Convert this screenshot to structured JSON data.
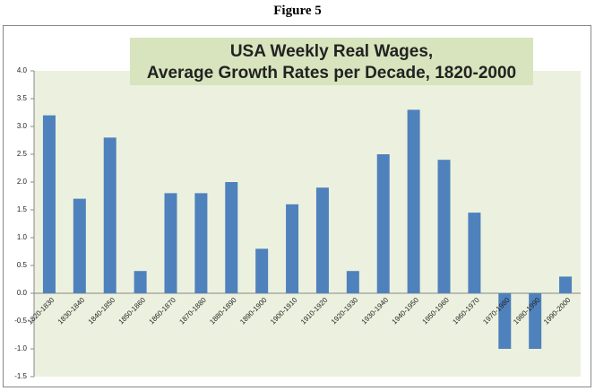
{
  "figure_label": "Figure 5",
  "chart_data": {
    "type": "bar",
    "title": "USA  Weekly Real  Wages,",
    "subtitle": "Average Growth Rates per Decade, 1820-2000",
    "categories": [
      "1820-1830",
      "1830-1840",
      "1840-1850",
      "1850-1860",
      "1860-1870",
      "1870-1880",
      "1880-1890",
      "1890-1900",
      "1900-1910",
      "1910-1920",
      "1920-1930",
      "1930-1940",
      "1940-1950",
      "1950-1960",
      "1960-1970",
      "1970-1980",
      "1980-1990",
      "1990-2000"
    ],
    "values": [
      3.2,
      1.7,
      2.8,
      0.4,
      1.8,
      1.8,
      2.0,
      0.8,
      1.6,
      1.9,
      0.4,
      2.5,
      3.3,
      2.4,
      1.45,
      -1.0,
      -1.0,
      0.3
    ],
    "color": "#4f81bd",
    "ylim": [
      -1.5,
      4.0
    ],
    "yticks": [
      {
        "value": -1.5,
        "label": "-1.5"
      },
      {
        "value": -1,
        "label": "-1.0"
      },
      {
        "value": -0.5,
        "label": "-0.5"
      },
      {
        "value": 0,
        "label": "0.0"
      },
      {
        "value": 0.5,
        "label": "0.5"
      },
      {
        "value": 1,
        "label": "1.0"
      },
      {
        "value": 1.5,
        "label": "1.5"
      },
      {
        "value": 2,
        "label": "2.0"
      },
      {
        "value": 2.5,
        "label": "2.5"
      },
      {
        "value": 3,
        "label": "3.0"
      },
      {
        "value": 3.5,
        "label": "3.5"
      },
      {
        "value": 4,
        "label": "4.0"
      }
    ],
    "grid": false
  }
}
